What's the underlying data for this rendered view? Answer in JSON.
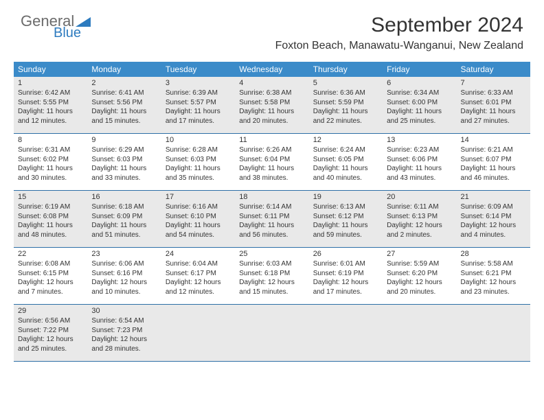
{
  "logo": {
    "line1": "General",
    "line2": "Blue"
  },
  "title": "September 2024",
  "location": "Foxton Beach, Manawatu-Wanganui, New Zealand",
  "colors": {
    "header_bg": "#3b8bc9",
    "header_text": "#ffffff",
    "cell_border": "#2c6ea6",
    "shaded_bg": "#e9e9e9",
    "text": "#333333",
    "logo_gray": "#6b6b6b",
    "logo_blue": "#2d7bbf"
  },
  "day_names": [
    "Sunday",
    "Monday",
    "Tuesday",
    "Wednesday",
    "Thursday",
    "Friday",
    "Saturday"
  ],
  "weeks": [
    {
      "shaded": true,
      "days": [
        {
          "n": "1",
          "sunrise": "6:42 AM",
          "sunset": "5:55 PM",
          "daylight": "11 hours and 12 minutes."
        },
        {
          "n": "2",
          "sunrise": "6:41 AM",
          "sunset": "5:56 PM",
          "daylight": "11 hours and 15 minutes."
        },
        {
          "n": "3",
          "sunrise": "6:39 AM",
          "sunset": "5:57 PM",
          "daylight": "11 hours and 17 minutes."
        },
        {
          "n": "4",
          "sunrise": "6:38 AM",
          "sunset": "5:58 PM",
          "daylight": "11 hours and 20 minutes."
        },
        {
          "n": "5",
          "sunrise": "6:36 AM",
          "sunset": "5:59 PM",
          "daylight": "11 hours and 22 minutes."
        },
        {
          "n": "6",
          "sunrise": "6:34 AM",
          "sunset": "6:00 PM",
          "daylight": "11 hours and 25 minutes."
        },
        {
          "n": "7",
          "sunrise": "6:33 AM",
          "sunset": "6:01 PM",
          "daylight": "11 hours and 27 minutes."
        }
      ]
    },
    {
      "shaded": false,
      "days": [
        {
          "n": "8",
          "sunrise": "6:31 AM",
          "sunset": "6:02 PM",
          "daylight": "11 hours and 30 minutes."
        },
        {
          "n": "9",
          "sunrise": "6:29 AM",
          "sunset": "6:03 PM",
          "daylight": "11 hours and 33 minutes."
        },
        {
          "n": "10",
          "sunrise": "6:28 AM",
          "sunset": "6:03 PM",
          "daylight": "11 hours and 35 minutes."
        },
        {
          "n": "11",
          "sunrise": "6:26 AM",
          "sunset": "6:04 PM",
          "daylight": "11 hours and 38 minutes."
        },
        {
          "n": "12",
          "sunrise": "6:24 AM",
          "sunset": "6:05 PM",
          "daylight": "11 hours and 40 minutes."
        },
        {
          "n": "13",
          "sunrise": "6:23 AM",
          "sunset": "6:06 PM",
          "daylight": "11 hours and 43 minutes."
        },
        {
          "n": "14",
          "sunrise": "6:21 AM",
          "sunset": "6:07 PM",
          "daylight": "11 hours and 46 minutes."
        }
      ]
    },
    {
      "shaded": true,
      "days": [
        {
          "n": "15",
          "sunrise": "6:19 AM",
          "sunset": "6:08 PM",
          "daylight": "11 hours and 48 minutes."
        },
        {
          "n": "16",
          "sunrise": "6:18 AM",
          "sunset": "6:09 PM",
          "daylight": "11 hours and 51 minutes."
        },
        {
          "n": "17",
          "sunrise": "6:16 AM",
          "sunset": "6:10 PM",
          "daylight": "11 hours and 54 minutes."
        },
        {
          "n": "18",
          "sunrise": "6:14 AM",
          "sunset": "6:11 PM",
          "daylight": "11 hours and 56 minutes."
        },
        {
          "n": "19",
          "sunrise": "6:13 AM",
          "sunset": "6:12 PM",
          "daylight": "11 hours and 59 minutes."
        },
        {
          "n": "20",
          "sunrise": "6:11 AM",
          "sunset": "6:13 PM",
          "daylight": "12 hours and 2 minutes."
        },
        {
          "n": "21",
          "sunrise": "6:09 AM",
          "sunset": "6:14 PM",
          "daylight": "12 hours and 4 minutes."
        }
      ]
    },
    {
      "shaded": false,
      "days": [
        {
          "n": "22",
          "sunrise": "6:08 AM",
          "sunset": "6:15 PM",
          "daylight": "12 hours and 7 minutes."
        },
        {
          "n": "23",
          "sunrise": "6:06 AM",
          "sunset": "6:16 PM",
          "daylight": "12 hours and 10 minutes."
        },
        {
          "n": "24",
          "sunrise": "6:04 AM",
          "sunset": "6:17 PM",
          "daylight": "12 hours and 12 minutes."
        },
        {
          "n": "25",
          "sunrise": "6:03 AM",
          "sunset": "6:18 PM",
          "daylight": "12 hours and 15 minutes."
        },
        {
          "n": "26",
          "sunrise": "6:01 AM",
          "sunset": "6:19 PM",
          "daylight": "12 hours and 17 minutes."
        },
        {
          "n": "27",
          "sunrise": "5:59 AM",
          "sunset": "6:20 PM",
          "daylight": "12 hours and 20 minutes."
        },
        {
          "n": "28",
          "sunrise": "5:58 AM",
          "sunset": "6:21 PM",
          "daylight": "12 hours and 23 minutes."
        }
      ]
    },
    {
      "shaded": true,
      "days": [
        {
          "n": "29",
          "sunrise": "6:56 AM",
          "sunset": "7:22 PM",
          "daylight": "12 hours and 25 minutes."
        },
        {
          "n": "30",
          "sunrise": "6:54 AM",
          "sunset": "7:23 PM",
          "daylight": "12 hours and 28 minutes."
        },
        {
          "n": "",
          "sunrise": "",
          "sunset": "",
          "daylight": ""
        },
        {
          "n": "",
          "sunrise": "",
          "sunset": "",
          "daylight": ""
        },
        {
          "n": "",
          "sunrise": "",
          "sunset": "",
          "daylight": ""
        },
        {
          "n": "",
          "sunrise": "",
          "sunset": "",
          "daylight": ""
        },
        {
          "n": "",
          "sunrise": "",
          "sunset": "",
          "daylight": ""
        }
      ]
    }
  ],
  "labels": {
    "sunrise": "Sunrise:",
    "sunset": "Sunset:",
    "daylight": "Daylight:"
  }
}
